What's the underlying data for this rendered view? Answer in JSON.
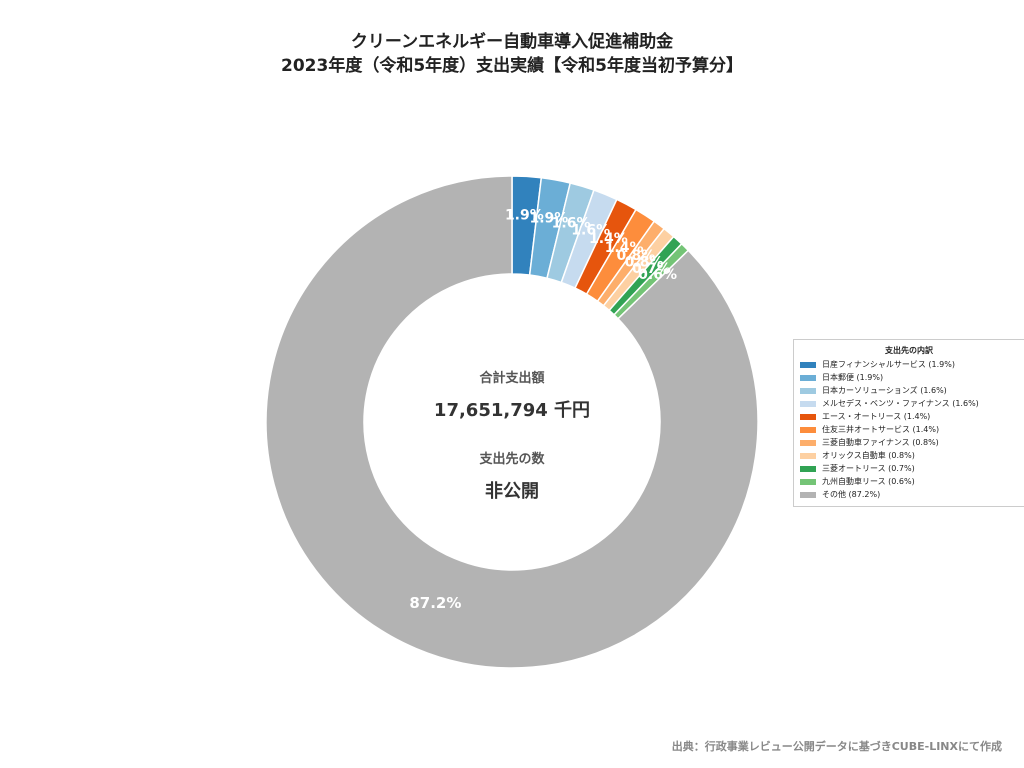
{
  "title": {
    "line1": "クリーンエネルギー自動車導入促進補助金",
    "line2": "2023年度（令和5年度）支出実績【令和5年度当初予算分】"
  },
  "center": {
    "total_label": "合計支出額",
    "total_value": "17,651,794 千円",
    "count_label": "支出先の数",
    "count_value": "非公開"
  },
  "legend": {
    "title": "支出先の内訳",
    "items": [
      {
        "label": "日産フィナンシャルサービス (1.9%)",
        "color": "#3182bd"
      },
      {
        "label": "日本郵便 (1.9%)",
        "color": "#6baed6"
      },
      {
        "label": "日本カーソリューションズ (1.6%)",
        "color": "#9ecae1"
      },
      {
        "label": "メルセデス・ベンツ・ファイナンス (1.6%)",
        "color": "#c6dbef"
      },
      {
        "label": "エース・オートリース (1.4%)",
        "color": "#e6550d"
      },
      {
        "label": "住友三井オートサービス (1.4%)",
        "color": "#fd8d3c"
      },
      {
        "label": "三菱自動車ファイナンス (0.8%)",
        "color": "#fdae6b"
      },
      {
        "label": "オリックス自動車 (0.8%)",
        "color": "#fdd0a2"
      },
      {
        "label": "三菱オートリース (0.7%)",
        "color": "#31a354"
      },
      {
        "label": "九州自動車リース (0.6%)",
        "color": "#74c476"
      },
      {
        "label": "その他 (87.2%)",
        "color": "#b3b3b3"
      }
    ]
  },
  "chart_data": {
    "type": "pie",
    "donut": true,
    "categories": [
      "日産フィナンシャルサービス",
      "日本郵便",
      "日本カーソリューションズ",
      "メルセデス・ベンツ・ファイナンス",
      "エース・オートリース",
      "住友三井オートサービス",
      "三菱自動車ファイナンス",
      "オリックス自動車",
      "三菱オートリース",
      "九州自動車リース",
      "その他"
    ],
    "values": [
      1.9,
      1.9,
      1.6,
      1.6,
      1.4,
      1.4,
      0.8,
      0.8,
      0.7,
      0.6,
      87.2
    ],
    "labels": [
      "1.9%",
      "1.9%",
      "1.6%",
      "1.6%",
      "1.4%",
      "1.4%",
      "0.8%",
      "0.8%",
      "0.7%",
      "0.6%",
      "87.2%"
    ],
    "colors": [
      "#3182bd",
      "#6baed6",
      "#9ecae1",
      "#c6dbef",
      "#e6550d",
      "#fd8d3c",
      "#fdae6b",
      "#fdd0a2",
      "#31a354",
      "#74c476",
      "#b3b3b3"
    ],
    "start": "top",
    "direction": "clockwise",
    "legend_position": "right"
  },
  "source": "出典：行政事業レビュー公開データに基づきCUBE-LINXにて作成"
}
